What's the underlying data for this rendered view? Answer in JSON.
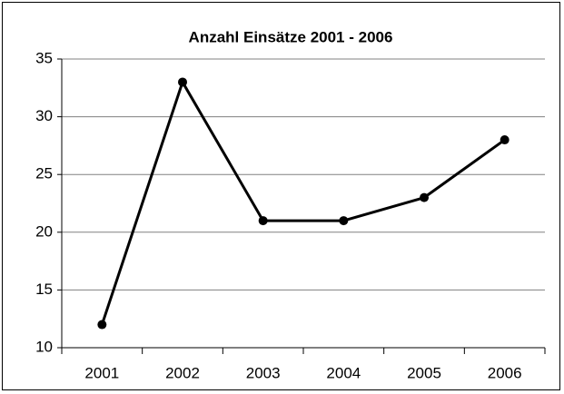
{
  "chart_data": {
    "type": "line",
    "title": "Anzahl Einsätze 2001 - 2006",
    "categories": [
      "2001",
      "2002",
      "2003",
      "2004",
      "2005",
      "2006"
    ],
    "values": [
      12,
      33,
      21,
      21,
      23,
      28
    ],
    "color": "#000000",
    "ylim": [
      10,
      35
    ],
    "yticks": [
      10,
      15,
      20,
      25,
      30,
      35
    ],
    "grid": true
  }
}
